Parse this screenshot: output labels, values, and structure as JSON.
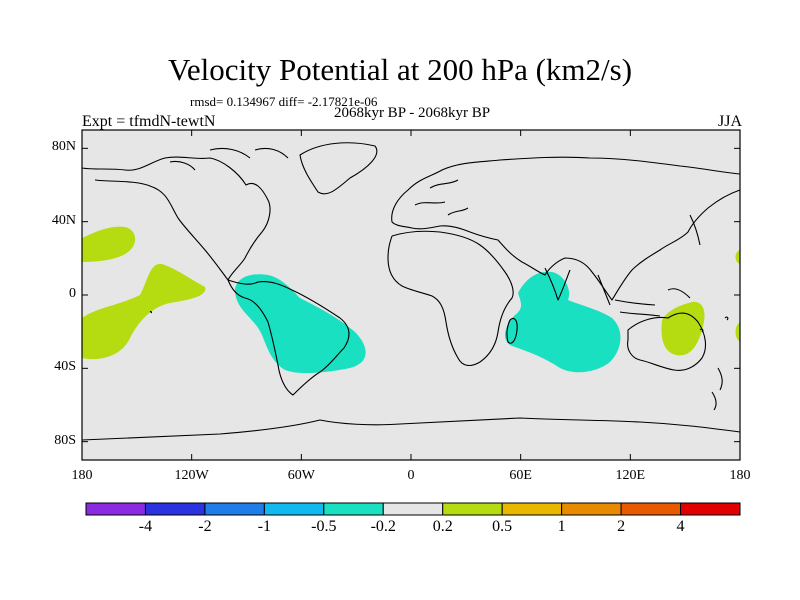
{
  "title": "Velocity Potential at 200 hPa (km2/s)",
  "stats": "rmsd= 0.134967 diff= -2.17821e-06",
  "subtitle": "2068kyr BP - 2068kyr BP",
  "expt": "Expt = tfmdN-tewtN",
  "season": "JJA",
  "y_axis": {
    "ticks": [
      {
        "value": 80,
        "label": "80N"
      },
      {
        "value": 40,
        "label": "40N"
      },
      {
        "value": 0,
        "label": "0"
      },
      {
        "value": -40,
        "label": "40S"
      },
      {
        "value": -80,
        "label": "80S"
      }
    ]
  },
  "x_axis": {
    "ticks": [
      {
        "value": -180,
        "label": "180"
      },
      {
        "value": -120,
        "label": "120W"
      },
      {
        "value": -60,
        "label": "60W"
      },
      {
        "value": 0,
        "label": "0"
      },
      {
        "value": 60,
        "label": "60E"
      },
      {
        "value": 120,
        "label": "120E"
      },
      {
        "value": 180,
        "label": "180"
      }
    ]
  },
  "colorbar": {
    "colors": [
      "#8a2be2",
      "#2b32e0",
      "#1e7de8",
      "#12b8f0",
      "#18e0c0",
      "#e6e6e6",
      "#b5dc10",
      "#e8b800",
      "#e88a00",
      "#e85a00",
      "#e00000"
    ],
    "labels": [
      "-4",
      "-2",
      "-1",
      "-0.5",
      "-0.2",
      "0.2",
      "0.5",
      "1",
      "2",
      "4"
    ]
  },
  "colors": {
    "background": "#e6e6e6",
    "positive": "#b5dc10",
    "negative": "#18e0c0"
  }
}
